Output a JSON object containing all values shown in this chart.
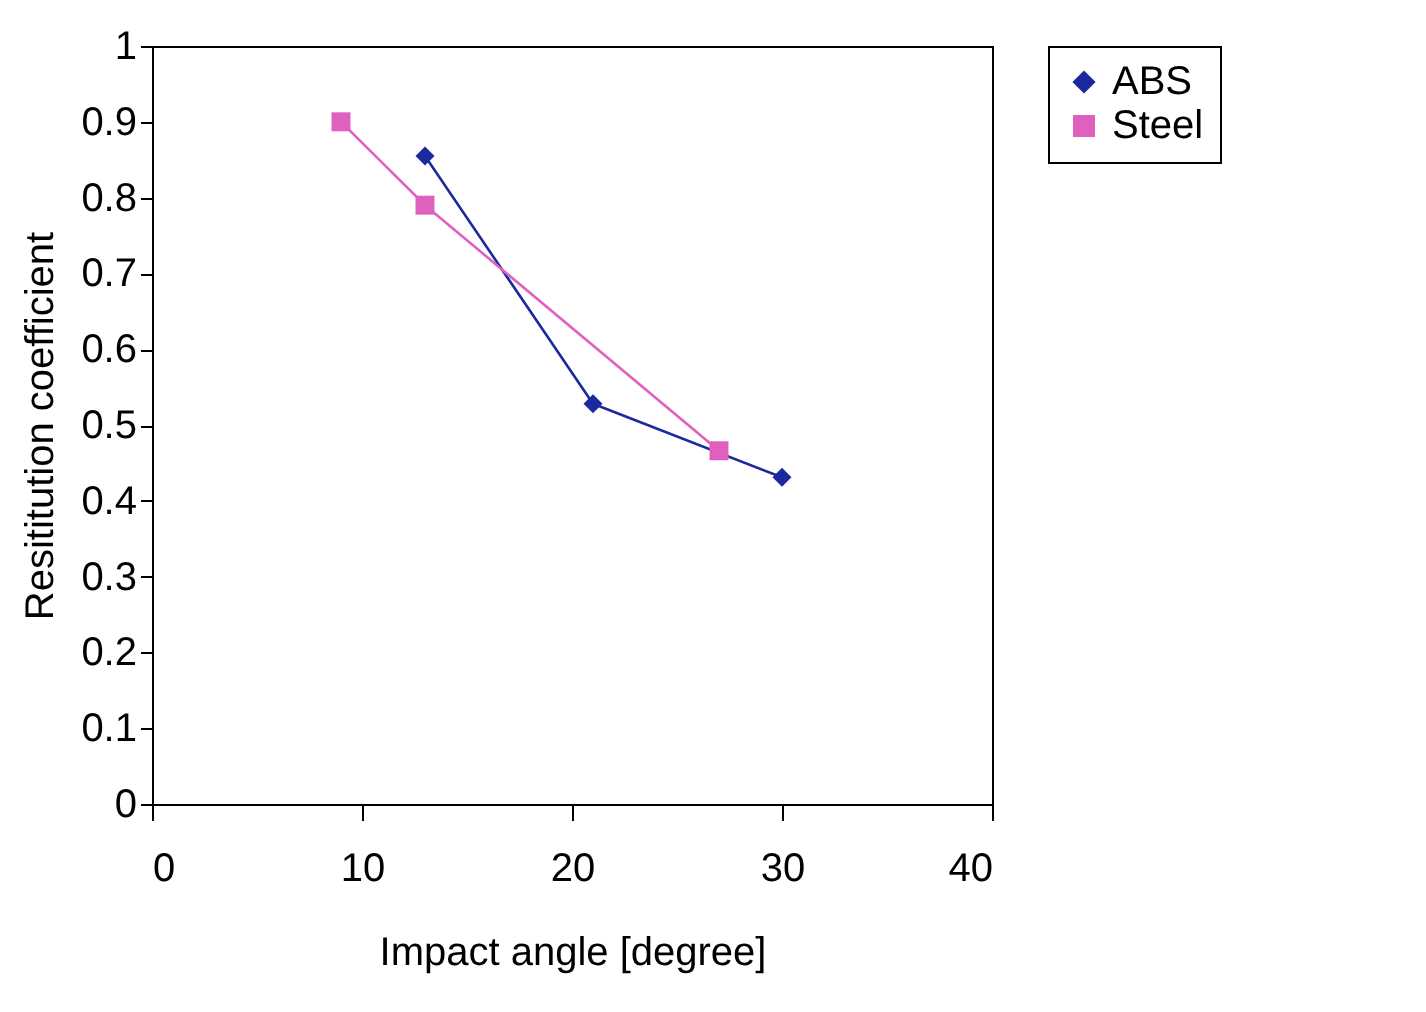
{
  "chart_data": {
    "type": "line",
    "xlabel": "Impact angle [degree]",
    "ylabel": "Resititution coefficient",
    "xlim": [
      0,
      40
    ],
    "xticks": [
      0,
      10,
      20,
      30,
      40
    ],
    "ylim": [
      0,
      1
    ],
    "yticks": [
      0,
      0.1,
      0.2,
      0.3,
      0.4,
      0.5,
      0.6,
      0.7,
      0.8,
      0.9,
      1
    ],
    "grid": false,
    "legend": "right",
    "series": [
      {
        "name": "ABS",
        "color": "#1a2a9e",
        "marker": "diamond",
        "x": [
          13,
          21,
          30
        ],
        "values": [
          0.855,
          0.528,
          0.431
        ]
      },
      {
        "name": "Steel",
        "color": "#e060c0",
        "marker": "square",
        "x": [
          9,
          13,
          27
        ],
        "values": [
          0.9,
          0.79,
          0.466
        ]
      }
    ]
  }
}
